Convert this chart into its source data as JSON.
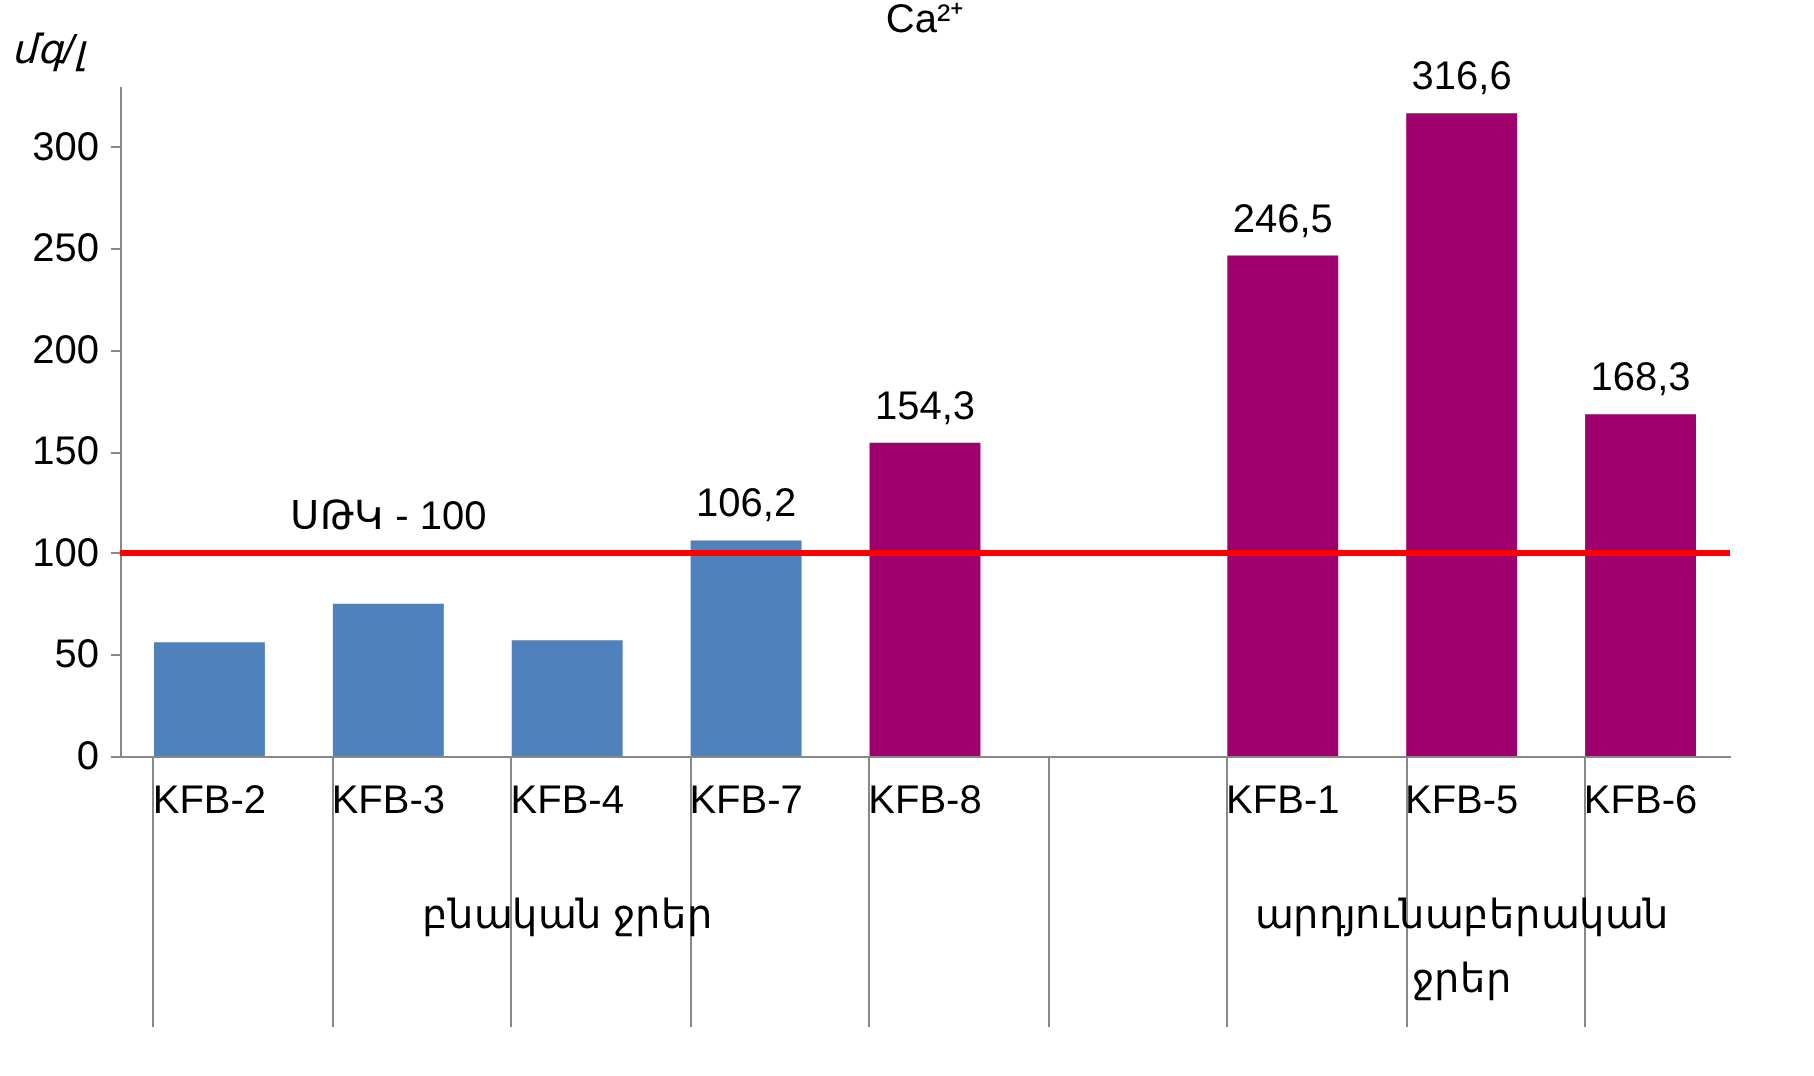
{
  "chart_data": {
    "type": "bar",
    "title": "Ca²⁺",
    "ylabel": "մգ/լ",
    "categories": [
      "KFB-2",
      "KFB-3",
      "KFB-4",
      "KFB-7",
      "KFB-8",
      null,
      "KFB-1",
      "KFB-5",
      "KFB-6"
    ],
    "values": [
      56,
      75,
      57,
      106.2,
      154.3,
      null,
      246.5,
      316.6,
      168.3
    ],
    "colors": [
      "#4f81bd",
      "#4f81bd",
      "#4f81bd",
      "#4f81bd",
      "#a0006e",
      "#a0006e",
      "#a0006e",
      "#a0006e",
      "#a0006e"
    ],
    "value_labels": [
      null,
      null,
      null,
      "106,2",
      "154,3",
      null,
      "246,5",
      "316,6",
      "168,3"
    ],
    "ylim": [
      0,
      330
    ],
    "yticks": [
      0,
      50,
      100,
      150,
      200,
      250,
      300
    ],
    "grid": false,
    "ref_lines": [
      {
        "axis": "y",
        "value": 100,
        "label": "ՍԹԿ - 100",
        "color": "#ff0000"
      }
    ],
    "annotations": [
      "բնական ջրեր",
      "արդյունաբերական ջրեր"
    ]
  }
}
